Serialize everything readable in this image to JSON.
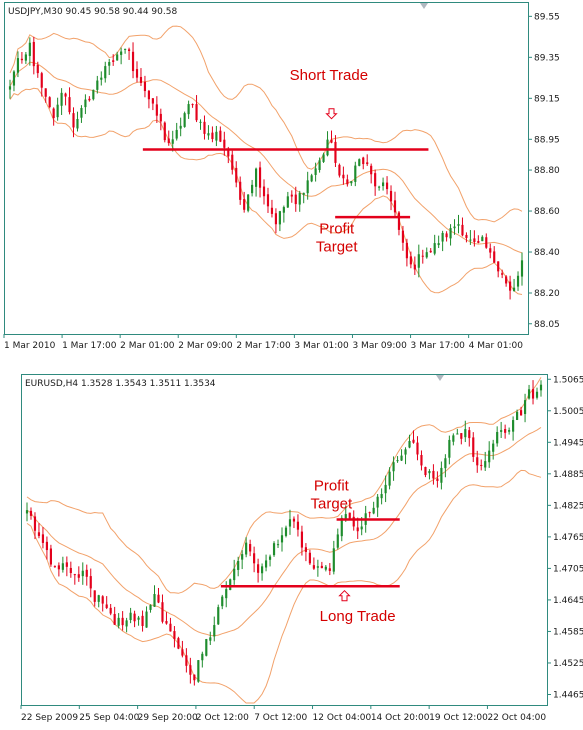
{
  "colors": {
    "frame": "#2f8a7e",
    "bull": "#1e8c2d",
    "bear": "#e3001b",
    "band": "#f2a26b",
    "level": "#e3001b",
    "annotation": "#d40000",
    "text": "#1a1a1a",
    "marker": "#b0b8c0"
  },
  "chart_data": [
    {
      "type": "candlestick",
      "header": "USDJPY,M30  90.45 90.58 90.44 90.58",
      "ylim": [
        88.0,
        89.62
      ],
      "y_ticks": [
        "89.55",
        "89.35",
        "89.15",
        "88.95",
        "88.80",
        "88.60",
        "88.40",
        "88.20",
        "88.05"
      ],
      "x_ticks": [
        "1 Mar 2010",
        "1 Mar 17:00",
        "2 Mar 01:00",
        "2 Mar 09:00",
        "2 Mar 17:00",
        "3 Mar 01:00",
        "3 Mar 09:00",
        "3 Mar 17:00",
        "4 Mar 01:00"
      ],
      "closes": [
        89.2,
        89.35,
        89.3,
        89.42,
        89.28,
        89.18,
        89.1,
        89.05,
        89.2,
        89.12,
        89.0,
        89.08,
        89.15,
        89.2,
        89.25,
        89.35,
        89.3,
        89.38,
        89.4,
        89.3,
        89.25,
        89.18,
        89.1,
        89.05,
        88.95,
        88.92,
        89.0,
        89.08,
        89.12,
        89.05,
        89.0,
        88.95,
        88.98,
        88.92,
        88.85,
        88.7,
        88.62,
        88.72,
        88.8,
        88.7,
        88.62,
        88.55,
        88.6,
        88.68,
        88.62,
        88.7,
        88.75,
        88.8,
        88.85,
        88.95,
        88.88,
        88.75,
        88.72,
        88.8,
        88.85,
        88.82,
        88.75,
        88.7,
        88.72,
        88.65,
        88.5,
        88.38,
        88.32,
        88.36,
        88.42,
        88.4,
        88.45,
        88.48,
        88.5,
        88.55,
        88.5,
        88.45,
        88.42,
        88.45,
        88.38,
        88.35,
        88.3,
        88.2,
        88.22,
        88.36
      ],
      "annotations": [
        {
          "kind": "level",
          "value": 88.9,
          "from": 0.265,
          "to": 0.81
        },
        {
          "kind": "level",
          "value": 88.57,
          "from": 0.632,
          "to": 0.775
        },
        {
          "kind": "arrow",
          "direction": "down",
          "at": 0.625,
          "value": 89.07
        }
      ],
      "labels": [
        {
          "lines": [
            "Short Trade"
          ],
          "at": 0.62,
          "value": 89.24
        },
        {
          "lines": [
            "Profit",
            "Target"
          ],
          "at": 0.635,
          "value": 88.49
        }
      ]
    },
    {
      "type": "candlestick",
      "header": "EURUSD,H4  1.3528 1.3543 1.3511 1.3534",
      "ylim": [
        1.4445,
        1.5075
      ],
      "y_ticks": [
        "1.5065",
        "1.5005",
        "1.4945",
        "1.4885",
        "1.4825",
        "1.4765",
        "1.4705",
        "1.4645",
        "1.4585",
        "1.4525",
        "1.4465"
      ],
      "x_ticks": [
        "22 Sep 2009",
        "25 Sep 04:00",
        "29 Sep 20:00",
        "2 Oct 12:00",
        "7 Oct 12:00",
        "12 Oct 04:00",
        "14 Oct 20:00",
        "19 Oct 12:00",
        "22 Oct 04:00"
      ],
      "closes": [
        1.482,
        1.4795,
        1.4765,
        1.475,
        1.4725,
        1.471,
        1.4705,
        1.4715,
        1.4695,
        1.468,
        1.47,
        1.466,
        1.4645,
        1.465,
        1.462,
        1.4605,
        1.461,
        1.459,
        1.462,
        1.4605,
        1.46,
        1.462,
        1.465,
        1.463,
        1.4595,
        1.457,
        1.456,
        1.4545,
        1.4515,
        1.4495,
        1.4535,
        1.4565,
        1.4585,
        1.4625,
        1.4655,
        1.468,
        1.471,
        1.4735,
        1.4745,
        1.4725,
        1.4705,
        1.4705,
        1.4725,
        1.4755,
        1.477,
        1.4785,
        1.479,
        1.477,
        1.474,
        1.4715,
        1.47,
        1.4695,
        1.47,
        1.4725,
        1.479,
        1.4805,
        1.479,
        1.4775,
        1.479,
        1.4805,
        1.4815,
        1.4845,
        1.4865,
        1.489,
        1.4905,
        1.4925,
        1.494,
        1.4935,
        1.4905,
        1.489,
        1.4875,
        1.487,
        1.4905,
        1.4945,
        1.495,
        1.4955,
        1.4965,
        1.4935,
        1.4905,
        1.4895,
        1.493,
        1.496,
        1.497,
        1.4965,
        1.4985,
        1.4995,
        1.5015,
        1.504,
        1.5035,
        1.5045
      ],
      "annotations": [
        {
          "kind": "level",
          "value": 1.4671,
          "from": 0.38,
          "to": 0.72
        },
        {
          "kind": "level",
          "value": 1.4798,
          "from": 0.6,
          "to": 0.72
        },
        {
          "kind": "arrow",
          "direction": "up",
          "at": 0.615,
          "value": 1.4655
        }
      ],
      "labels": [
        {
          "lines": [
            "Profit",
            "Target"
          ],
          "at": 0.59,
          "value": 1.4853
        },
        {
          "lines": [
            "Long Trade"
          ],
          "at": 0.64,
          "value": 1.4605
        }
      ]
    }
  ]
}
